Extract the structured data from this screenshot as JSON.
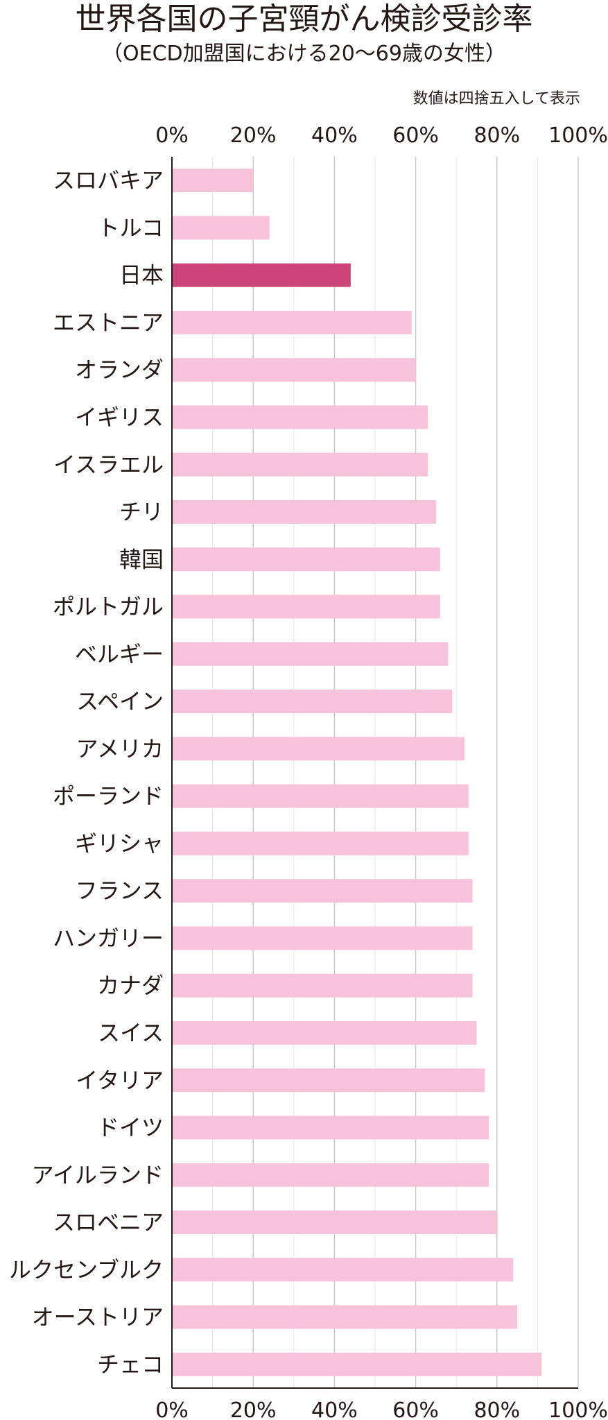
{
  "chart_data": {
    "type": "bar",
    "orientation": "horizontal",
    "title": "世界各国の子宮頸がん検診受診率",
    "subtitle": "（OECD加盟国における20～69歳の女性）",
    "note": "数値は四捨五入して表示",
    "categories": [
      "スロバキア",
      "トルコ",
      "日本",
      "エストニア",
      "オランダ",
      "イギリス",
      "イスラエル",
      "チリ",
      "韓国",
      "ポルトガル",
      "ベルギー",
      "スペイン",
      "アメリカ",
      "ポーランド",
      "ギリシャ",
      "フランス",
      "ハンガリー",
      "カナダ",
      "スイス",
      "イタリア",
      "ドイツ",
      "アイルランド",
      "スロベニア",
      "ルクセンブルク",
      "オーストリア",
      "チェコ"
    ],
    "values": [
      20,
      24,
      44,
      59,
      60,
      63,
      63,
      65,
      66,
      66,
      68,
      69,
      72,
      73,
      73,
      74,
      74,
      74,
      75,
      77,
      78,
      78,
      80,
      84,
      85,
      91
    ],
    "xlim": [
      0,
      100
    ],
    "tick_labels": [
      "0%",
      "20%",
      "40%",
      "60%",
      "80%",
      "100%"
    ],
    "tick_values": [
      0,
      20,
      40,
      60,
      80,
      100
    ],
    "grid": true,
    "highlight_category": "日本",
    "colors": {
      "bar": "#f7c3da",
      "highlight": "#cc4479",
      "grid_major": "#c8c8c8",
      "grid_minor": "#e6e6e6",
      "axis": "#231815"
    }
  }
}
